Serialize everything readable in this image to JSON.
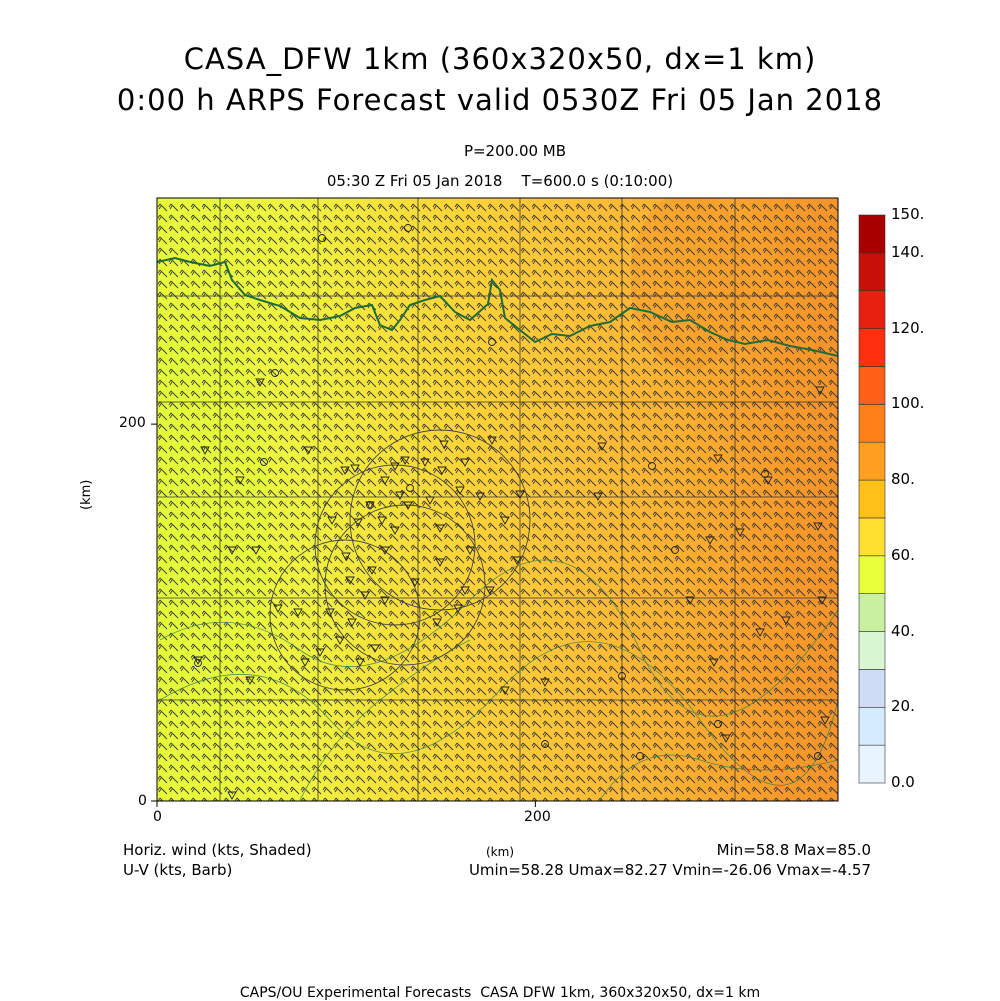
{
  "header": {
    "title_line1": "CASA_DFW 1km (360x320x50, dx=1 km)",
    "title_line2": "0:00 h ARPS Forecast valid 0530Z Fri 05 Jan 2018",
    "level": "P=200.00 MB",
    "valid_time": "05:30 Z Fri 05 Jan 2018    T=600.0 s (0:10:00)"
  },
  "footer": {
    "left_line1": "Horiz. wind (kts, Shaded)",
    "left_line2": "U-V (kts, Barb)",
    "xunit": "(km)",
    "right_line1": "Min=58.8 Max=85.0",
    "right_line2": "Umin=58.28 Umax=82.27 Vmin=-26.06 Vmax=-4.57",
    "credit": "CAPS/OU Experimental Forecasts  CASA DFW 1km, 360x320x50, dx=1 km"
  },
  "chart_data": {
    "type": "heatmap",
    "field": "Horiz. wind (kts, Shaded)",
    "overlay": "U-V (kts, Barb)",
    "xlabel": "(km)",
    "ylabel": "(km)",
    "xlim": [
      0,
      360
    ],
    "ylim": [
      0,
      320
    ],
    "x_ticks": [
      0,
      200
    ],
    "y_ticks": [
      0,
      200
    ],
    "min": 58.8,
    "max": 85.0,
    "umin": 58.28,
    "umax": 82.27,
    "vmin": -26.06,
    "vmax": -4.57,
    "colorbar": {
      "levels": [
        0,
        10,
        20,
        30,
        40,
        50,
        60,
        70,
        80,
        90,
        100,
        110,
        120,
        130,
        140,
        150
      ],
      "tick_labels": [
        "0.0",
        "20.",
        "40.",
        "60.",
        "80.",
        "100.",
        "120.",
        "140.",
        "150."
      ],
      "tick_values": [
        0,
        20,
        40,
        60,
        80,
        100,
        120,
        140,
        150
      ],
      "colors": [
        "#e8f4ff",
        "#d4ecff",
        "#cfdcf5",
        "#d8f6d2",
        "#c8f0a0",
        "#e8ff3c",
        "#ffe030",
        "#ffc018",
        "#ffa020",
        "#ff8018",
        "#ff6018",
        "#ff3010",
        "#e82010",
        "#c81008",
        "#a80000"
      ]
    },
    "domain_extent": {
      "x_km": 360,
      "y_km": 320
    },
    "speed_gradient": {
      "west_kts": 62,
      "east_kts": 84
    }
  }
}
